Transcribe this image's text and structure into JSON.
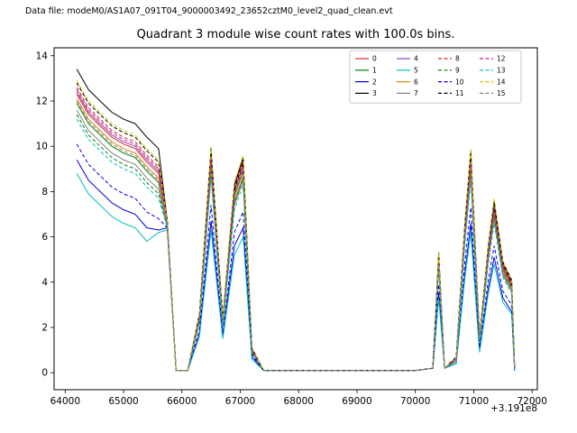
{
  "figure": {
    "header": "Data file: modeM0/AS1A07_091T04_9000003492_23652cztM0_level2_quad_clean.evt"
  },
  "chart_data": {
    "type": "line",
    "title": "Quadrant 3 module wise count rates with 100.0s bins.",
    "xlabel": "",
    "ylabel": "",
    "x_offset_label": "+3.191e8",
    "grid": false,
    "legend_position": "upper right inside axes, 4 columns",
    "xlim": [
      63810,
      72090
    ],
    "ylim": [
      -0.75,
      14.35
    ],
    "x_ticks": [
      64000,
      65000,
      66000,
      67000,
      68000,
      69000,
      70000,
      71000,
      72000
    ],
    "y_ticks": [
      0,
      2,
      4,
      6,
      8,
      10,
      12,
      14
    ],
    "x": [
      64200,
      64400,
      64600,
      64800,
      65000,
      65200,
      65400,
      65600,
      65750,
      65900,
      66100,
      66300,
      66500,
      66700,
      66900,
      67050,
      67200,
      67400,
      68000,
      69000,
      70000,
      70300,
      70400,
      70500,
      70700,
      70850,
      70950,
      71100,
      71250,
      71350,
      71500,
      71650,
      71700
    ],
    "series": [
      {
        "name": "0",
        "color": "#d62728",
        "dash": false,
        "values": [
          12.3,
          11.4,
          10.9,
          10.4,
          10.1,
          9.9,
          9.3,
          8.8,
          6.6,
          0.1,
          0.1,
          2.5,
          9.8,
          2.3,
          8.2,
          9.4,
          1.0,
          0.1,
          0.1,
          0.1,
          0.1,
          0.2,
          5.2,
          0.2,
          0.6,
          6.5,
          9.7,
          1.5,
          5.5,
          7.5,
          4.8,
          4.0,
          0.2
        ]
      },
      {
        "name": "1",
        "color": "#008000",
        "dash": false,
        "values": [
          11.9,
          11.0,
          10.5,
          10.0,
          9.7,
          9.5,
          8.9,
          8.4,
          6.5,
          0.1,
          0.1,
          2.4,
          9.3,
          2.2,
          7.8,
          8.9,
          1.0,
          0.1,
          0.1,
          0.1,
          0.1,
          0.2,
          4.9,
          0.2,
          0.6,
          6.2,
          9.2,
          1.4,
          5.2,
          7.1,
          4.6,
          3.8,
          0.2
        ]
      },
      {
        "name": "2",
        "color": "#0000dd",
        "dash": false,
        "values": [
          9.4,
          8.5,
          8.0,
          7.5,
          7.2,
          7.0,
          6.4,
          6.3,
          6.4,
          0.1,
          0.1,
          1.7,
          6.7,
          1.6,
          5.6,
          6.4,
          0.7,
          0.1,
          0.1,
          0.1,
          0.1,
          0.2,
          3.5,
          0.2,
          0.4,
          4.4,
          6.6,
          1.0,
          3.7,
          5.1,
          3.3,
          2.7,
          0.1
        ]
      },
      {
        "name": "3",
        "color": "#000000",
        "dash": false,
        "values": [
          13.4,
          12.5,
          12.0,
          11.5,
          11.2,
          11.0,
          10.4,
          9.9,
          6.7,
          0.1,
          0.1,
          2.6,
          9.9,
          2.4,
          8.3,
          9.5,
          1.1,
          0.1,
          0.1,
          0.1,
          0.1,
          0.2,
          5.3,
          0.2,
          0.7,
          6.6,
          9.8,
          1.6,
          5.6,
          7.6,
          4.9,
          4.1,
          0.2
        ]
      },
      {
        "name": "4",
        "color": "#8e44ad",
        "dash": false,
        "values": [
          12.4,
          11.5,
          11.0,
          10.5,
          10.2,
          10.0,
          9.4,
          8.9,
          6.6,
          0.1,
          0.1,
          2.4,
          9.5,
          2.2,
          8.0,
          9.1,
          1.0,
          0.1,
          0.1,
          0.1,
          0.1,
          0.2,
          5.0,
          0.2,
          0.6,
          6.3,
          9.4,
          1.5,
          5.3,
          7.3,
          4.7,
          3.9,
          0.2
        ]
      },
      {
        "name": "5",
        "color": "#00bfbf",
        "dash": false,
        "values": [
          8.8,
          7.9,
          7.4,
          6.9,
          6.6,
          6.4,
          5.8,
          6.2,
          6.3,
          0.1,
          0.1,
          1.6,
          6.3,
          1.5,
          5.2,
          6.0,
          0.6,
          0.1,
          0.1,
          0.1,
          0.1,
          0.2,
          3.3,
          0.2,
          0.4,
          4.2,
          6.2,
          0.9,
          3.5,
          4.8,
          3.1,
          2.6,
          0.1
        ]
      },
      {
        "name": "6",
        "color": "#e08214",
        "dash": false,
        "values": [
          12.1,
          11.2,
          10.7,
          10.2,
          9.9,
          9.7,
          9.1,
          8.6,
          6.5,
          0.1,
          0.1,
          2.3,
          9.1,
          2.1,
          7.6,
          8.7,
          0.9,
          0.1,
          0.1,
          0.1,
          0.1,
          0.2,
          4.8,
          0.2,
          0.6,
          6.0,
          9.0,
          1.4,
          5.1,
          7.0,
          4.5,
          3.7,
          0.2
        ]
      },
      {
        "name": "7",
        "color": "#7f7f7f",
        "dash": false,
        "values": [
          11.6,
          10.7,
          10.2,
          9.7,
          9.4,
          9.2,
          8.6,
          8.1,
          6.5,
          0.1,
          0.1,
          2.3,
          8.8,
          2.1,
          7.4,
          8.5,
          0.9,
          0.1,
          0.1,
          0.1,
          0.1,
          0.2,
          4.7,
          0.2,
          0.5,
          5.9,
          8.7,
          1.4,
          5.0,
          6.8,
          4.3,
          3.6,
          0.2
        ]
      },
      {
        "name": "8",
        "color": "#d62728",
        "dash": true,
        "values": [
          12.6,
          11.7,
          11.2,
          10.7,
          10.4,
          10.2,
          9.6,
          9.1,
          6.6,
          0.1,
          0.1,
          2.5,
          9.6,
          2.3,
          8.0,
          9.2,
          1.0,
          0.1,
          0.1,
          0.1,
          0.1,
          0.2,
          5.1,
          0.2,
          0.6,
          6.4,
          9.5,
          1.5,
          5.4,
          7.4,
          4.7,
          3.9,
          0.2
        ]
      },
      {
        "name": "9",
        "color": "#008000",
        "dash": true,
        "values": [
          11.4,
          10.5,
          10.0,
          9.5,
          9.2,
          9.0,
          8.4,
          7.9,
          6.4,
          0.1,
          0.1,
          2.3,
          9.0,
          2.1,
          7.5,
          8.6,
          0.9,
          0.1,
          0.1,
          0.1,
          0.1,
          0.2,
          4.8,
          0.2,
          0.6,
          6.0,
          8.9,
          1.4,
          5.1,
          6.9,
          4.4,
          3.7,
          0.2
        ]
      },
      {
        "name": "10",
        "color": "#0000dd",
        "dash": true,
        "values": [
          10.1,
          9.2,
          8.7,
          8.2,
          7.9,
          7.7,
          7.1,
          6.8,
          6.4,
          0.1,
          0.1,
          1.9,
          7.4,
          1.7,
          6.2,
          7.1,
          0.8,
          0.1,
          0.1,
          0.1,
          0.1,
          0.2,
          3.9,
          0.2,
          0.5,
          4.9,
          7.3,
          1.1,
          4.1,
          5.6,
          3.6,
          3.0,
          0.1
        ]
      },
      {
        "name": "11",
        "color": "#000000",
        "dash": true,
        "values": [
          12.8,
          11.9,
          11.4,
          10.9,
          10.6,
          10.4,
          9.8,
          9.3,
          6.7,
          0.1,
          0.1,
          2.5,
          9.7,
          2.3,
          8.1,
          9.3,
          1.0,
          0.1,
          0.1,
          0.1,
          0.1,
          0.2,
          5.1,
          0.2,
          0.6,
          6.4,
          9.6,
          1.5,
          5.4,
          7.4,
          4.8,
          4.0,
          0.2
        ]
      },
      {
        "name": "12",
        "color": "#d02090",
        "dash": true,
        "values": [
          12.5,
          11.6,
          11.1,
          10.6,
          10.3,
          10.1,
          9.5,
          9.0,
          6.6,
          0.1,
          0.1,
          2.4,
          9.4,
          2.2,
          7.9,
          9.0,
          1.0,
          0.1,
          0.1,
          0.1,
          0.1,
          0.2,
          5.0,
          0.2,
          0.6,
          6.2,
          9.3,
          1.4,
          5.3,
          7.2,
          4.6,
          3.8,
          0.2
        ]
      },
      {
        "name": "13",
        "color": "#00bfbf",
        "dash": true,
        "values": [
          11.2,
          10.3,
          9.8,
          9.3,
          9.0,
          8.8,
          8.2,
          7.7,
          6.4,
          0.1,
          0.1,
          2.2,
          8.6,
          2.0,
          7.2,
          8.3,
          0.9,
          0.1,
          0.1,
          0.1,
          0.1,
          0.2,
          4.6,
          0.2,
          0.5,
          5.7,
          8.5,
          1.3,
          4.8,
          6.6,
          4.2,
          3.5,
          0.2
        ]
      },
      {
        "name": "14",
        "color": "#cccc00",
        "dash": true,
        "values": [
          12.9,
          12.0,
          11.5,
          11.0,
          10.7,
          10.5,
          9.9,
          9.4,
          6.7,
          0.1,
          0.1,
          2.6,
          10.0,
          2.4,
          8.4,
          9.6,
          1.1,
          0.1,
          0.1,
          0.1,
          0.1,
          0.2,
          5.3,
          0.2,
          0.7,
          6.6,
          9.9,
          1.6,
          5.6,
          7.7,
          4.9,
          4.1,
          0.2
        ]
      },
      {
        "name": "15",
        "color": "#7f7f7f",
        "dash": true,
        "values": [
          12.0,
          11.1,
          10.6,
          10.1,
          9.8,
          9.6,
          9.0,
          8.5,
          6.5,
          0.1,
          0.1,
          2.3,
          8.9,
          2.1,
          7.5,
          8.6,
          0.9,
          0.1,
          0.1,
          0.1,
          0.1,
          0.2,
          4.7,
          0.2,
          0.5,
          5.9,
          8.8,
          1.4,
          5.0,
          6.8,
          4.4,
          3.6,
          0.2
        ]
      }
    ]
  }
}
